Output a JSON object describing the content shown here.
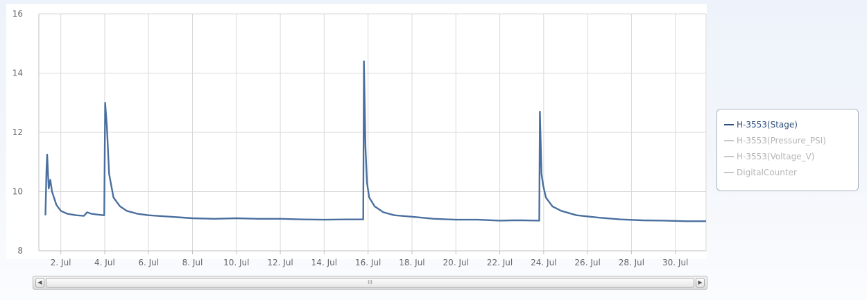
{
  "chart_data": {
    "type": "line",
    "title": "",
    "xlabel": "",
    "ylabel": "",
    "x_unit": "day of July",
    "xlim": [
      1,
      31.4
    ],
    "ylim": [
      8,
      16
    ],
    "y_ticks": [
      8,
      10,
      12,
      14,
      16
    ],
    "x_ticks": [
      {
        "day": 2,
        "label": "2. Jul"
      },
      {
        "day": 4,
        "label": "4. Jul"
      },
      {
        "day": 6,
        "label": "6. Jul"
      },
      {
        "day": 8,
        "label": "8. Jul"
      },
      {
        "day": 10,
        "label": "10. Jul"
      },
      {
        "day": 12,
        "label": "12. Jul"
      },
      {
        "day": 14,
        "label": "14. Jul"
      },
      {
        "day": 16,
        "label": "16. Jul"
      },
      {
        "day": 18,
        "label": "18. Jul"
      },
      {
        "day": 20,
        "label": "20. Jul"
      },
      {
        "day": 22,
        "label": "22. Jul"
      },
      {
        "day": 24,
        "label": "24. Jul"
      },
      {
        "day": 26,
        "label": "26. Jul"
      },
      {
        "day": 28,
        "label": "28. Jul"
      },
      {
        "day": 30,
        "label": "30. Jul"
      }
    ],
    "grid": true,
    "legend_position": "right",
    "series": [
      {
        "name": "H-3553(Stage)",
        "visible": true,
        "color": "#4a6f9f",
        "points": [
          [
            1.3,
            9.2
          ],
          [
            1.35,
            10.8
          ],
          [
            1.38,
            11.25
          ],
          [
            1.45,
            10.1
          ],
          [
            1.52,
            10.4
          ],
          [
            1.6,
            10.0
          ],
          [
            1.8,
            9.55
          ],
          [
            2.0,
            9.35
          ],
          [
            2.3,
            9.25
          ],
          [
            2.7,
            9.2
          ],
          [
            3.05,
            9.18
          ],
          [
            3.2,
            9.3
          ],
          [
            3.4,
            9.25
          ],
          [
            3.7,
            9.22
          ],
          [
            3.95,
            9.2
          ],
          [
            3.98,
            9.2
          ],
          [
            4.02,
            13.0
          ],
          [
            4.1,
            12.2
          ],
          [
            4.2,
            10.6
          ],
          [
            4.4,
            9.8
          ],
          [
            4.7,
            9.5
          ],
          [
            5.0,
            9.35
          ],
          [
            5.5,
            9.25
          ],
          [
            6.0,
            9.2
          ],
          [
            7.0,
            9.15
          ],
          [
            8.0,
            9.1
          ],
          [
            9.0,
            9.08
          ],
          [
            10.0,
            9.1
          ],
          [
            11.0,
            9.08
          ],
          [
            12.0,
            9.08
          ],
          [
            13.0,
            9.06
          ],
          [
            14.0,
            9.05
          ],
          [
            15.0,
            9.06
          ],
          [
            15.78,
            9.06
          ],
          [
            15.81,
            14.4
          ],
          [
            15.88,
            11.5
          ],
          [
            15.95,
            10.3
          ],
          [
            16.05,
            9.8
          ],
          [
            16.3,
            9.5
          ],
          [
            16.7,
            9.3
          ],
          [
            17.2,
            9.2
          ],
          [
            18.0,
            9.15
          ],
          [
            19.0,
            9.08
          ],
          [
            20.0,
            9.05
          ],
          [
            21.0,
            9.05
          ],
          [
            22.0,
            9.02
          ],
          [
            22.6,
            9.03
          ],
          [
            23.0,
            9.03
          ],
          [
            23.8,
            9.02
          ],
          [
            23.83,
            12.7
          ],
          [
            23.9,
            10.6
          ],
          [
            23.98,
            10.2
          ],
          [
            24.1,
            9.8
          ],
          [
            24.4,
            9.5
          ],
          [
            24.8,
            9.35
          ],
          [
            25.5,
            9.2
          ],
          [
            26.5,
            9.12
          ],
          [
            27.5,
            9.06
          ],
          [
            28.5,
            9.03
          ],
          [
            29.5,
            9.02
          ],
          [
            30.5,
            9.0
          ],
          [
            31.0,
            9.0
          ],
          [
            31.4,
            9.0
          ]
        ]
      },
      {
        "name": "H-3553(Pressure_PSI)",
        "visible": false,
        "color": "#c8c8c8",
        "points": []
      },
      {
        "name": "H-3553(Voltage_V)",
        "visible": false,
        "color": "#c8c8c8",
        "points": []
      },
      {
        "name": "DigitalCounter",
        "visible": false,
        "color": "#c8c8c8",
        "points": []
      }
    ]
  },
  "legend": {
    "items": [
      {
        "label": "H-3553(Stage)",
        "color": "#2f4f78",
        "text_color": "#2f4f78"
      },
      {
        "label": "H-3553(Pressure_PSI)",
        "color": "#c8c8c8",
        "text_color": "#b5b5b5"
      },
      {
        "label": "H-3553(Voltage_V)",
        "color": "#c8c8c8",
        "text_color": "#b5b5b5"
      },
      {
        "label": "DigitalCounter",
        "color": "#c8c8c8",
        "text_color": "#b5b5b5"
      }
    ]
  },
  "scrollbar": {
    "left_icon": "arrow-left-icon",
    "right_icon": "arrow-right-icon",
    "grip_label": "III"
  }
}
